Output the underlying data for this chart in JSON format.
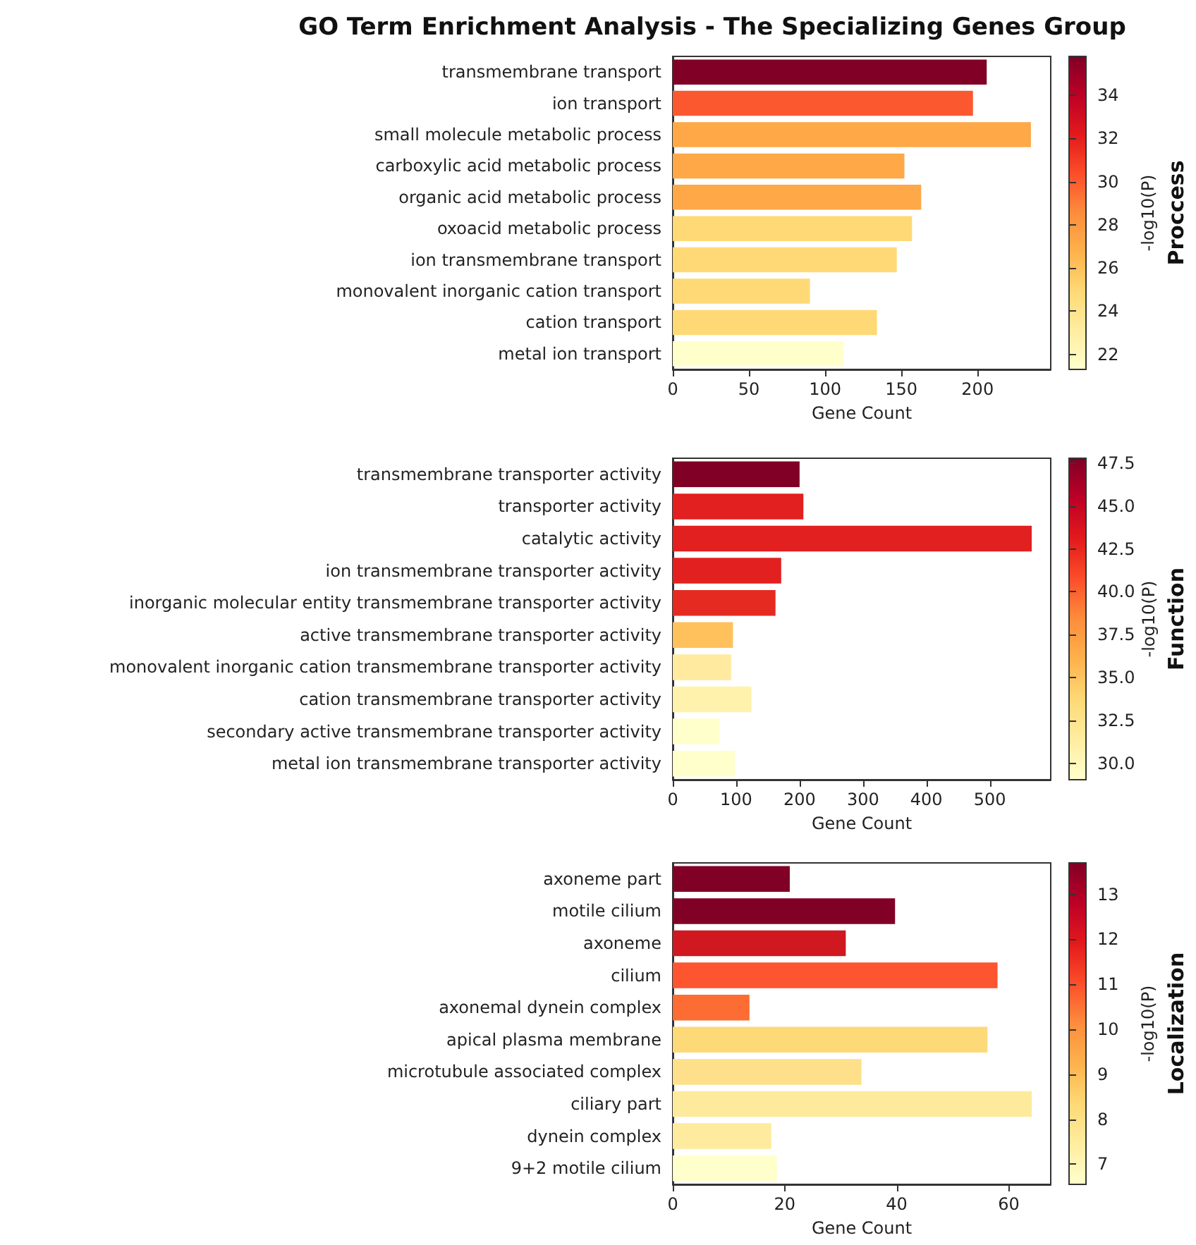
{
  "chart_data": [
    {
      "type": "bar",
      "orientation": "horizontal",
      "title": "GO Term Enrichment Analysis - The Specializing Genes Group",
      "categories": [
        "transmembrane transport",
        "ion transport",
        "small molecule metabolic process",
        "carboxylic acid metabolic process",
        "organic acid metabolic process",
        "oxoacid metabolic process",
        "ion transmembrane transport",
        "monovalent inorganic cation transport",
        "cation transport",
        "metal ion transport"
      ],
      "values": [
        206,
        197,
        235,
        152,
        163,
        157,
        147,
        90,
        134,
        112
      ],
      "colors": [
        "#800026",
        "#fc5830",
        "#fea848",
        "#fea848",
        "#fea848",
        "#fed976",
        "#fed976",
        "#fed976",
        "#fed976",
        "#ffffcc"
      ],
      "xlim": [
        0,
        248
      ],
      "xticks": [
        0,
        50,
        100,
        150,
        200
      ],
      "xlabel": "Gene Count",
      "ylabel": "Proccess",
      "clabel": "-log10(P)",
      "clim": [
        21.3,
        35.8
      ],
      "cticks": [
        22,
        24,
        26,
        28,
        30,
        32,
        34
      ]
    },
    {
      "type": "bar",
      "orientation": "horizontal",
      "categories": [
        "transmembrane transporter activity",
        "transporter activity",
        "catalytic activity",
        "ion transmembrane transporter activity",
        "inorganic molecular entity transmembrane transporter activity",
        "active transmembrane transporter activity",
        "monovalent inorganic cation transmembrane transporter activity",
        "cation transmembrane transporter activity",
        "secondary active transmembrane transporter activity",
        "metal ion transmembrane transporter activity"
      ],
      "values": [
        200,
        206,
        566,
        171,
        162,
        95,
        92,
        124,
        74,
        98
      ],
      "colors": [
        "#800026",
        "#e2201f",
        "#e2201f",
        "#e2201f",
        "#e52a22",
        "#fec15c",
        "#ffeaa0",
        "#fff2ad",
        "#ffffcc",
        "#ffffcc"
      ],
      "xlim": [
        0,
        596
      ],
      "xticks": [
        0,
        100,
        200,
        300,
        400,
        500
      ],
      "xlabel": "Gene Count",
      "ylabel": "Function",
      "clabel": "-log10(P)",
      "clim": [
        29.07,
        47.77
      ],
      "cticks": [
        {
          "value": 30,
          "label": "30.0"
        },
        {
          "value": 32.5,
          "label": "32.5"
        },
        {
          "value": 35,
          "label": "35.0"
        },
        {
          "value": 37.5,
          "label": "37.5"
        },
        {
          "value": 40,
          "label": "40.0"
        },
        {
          "value": 42.5,
          "label": "42.5"
        },
        {
          "value": 45,
          "label": "45.0"
        },
        {
          "value": 47.5,
          "label": "47.5"
        }
      ]
    },
    {
      "type": "bar",
      "orientation": "horizontal",
      "categories": [
        "axoneme part",
        "motile cilium",
        "axoneme",
        "cilium",
        "axonemal dynein complex",
        "apical plasma membrane",
        "microtubule associated complex",
        "ciliary part",
        "dynein complex",
        "9+2 motile cilium"
      ],
      "values": [
        20.9,
        39.7,
        30.9,
        58,
        13.7,
        56.2,
        33.7,
        64.1,
        17.6,
        18.6
      ],
      "colors": [
        "#800026",
        "#800026",
        "#cf1820",
        "#fc5530",
        "#fd6c32",
        "#fed978",
        "#fee08a",
        "#feea9c",
        "#feeb9e",
        "#ffffcc"
      ],
      "xlim": [
        0,
        67.5
      ],
      "xticks": [
        0,
        20,
        40,
        60
      ],
      "xlabel": "Gene Count",
      "ylabel": "Localization",
      "clabel": "-log10(P)",
      "clim": [
        6.55,
        13.7
      ],
      "cticks": [
        7,
        8,
        9,
        10,
        11,
        12,
        13
      ]
    }
  ]
}
